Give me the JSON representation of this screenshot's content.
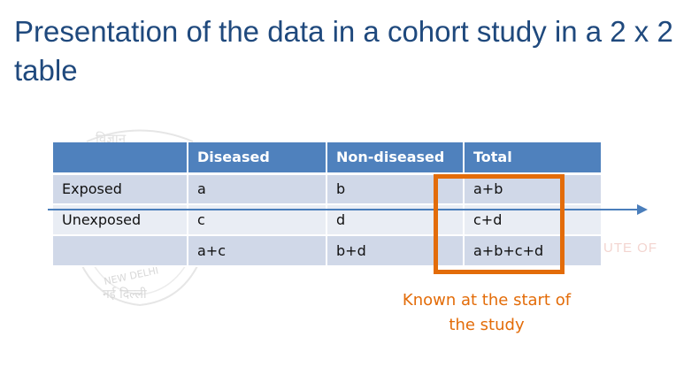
{
  "slide": {
    "title": "Presentation of the data in a cohort study in a 2 x 2 table",
    "note": "Known at the start of the study"
  },
  "table": {
    "headers": [
      "",
      "Diseased",
      "Non-diseased",
      "Total"
    ],
    "rows": [
      [
        "Exposed",
        "a",
        "b",
        "a+b"
      ],
      [
        "Unexposed",
        "c",
        "d",
        "c+d"
      ],
      [
        "",
        "a+c",
        "b+d",
        "a+b+c+d"
      ]
    ]
  },
  "watermark": {
    "seal_top": "विज्ञान",
    "seal_en": "NEW DELHI",
    "seal_hi": "नई दिल्ली",
    "side_text": "UTE OF"
  },
  "colors": {
    "title": "#1f497d",
    "header_fill": "#4f81bd",
    "row_fill_dark": "#d0d8e8",
    "row_fill_light": "#e9edf4",
    "highlight": "#e36c09",
    "arrow": "#4a7ebb"
  }
}
